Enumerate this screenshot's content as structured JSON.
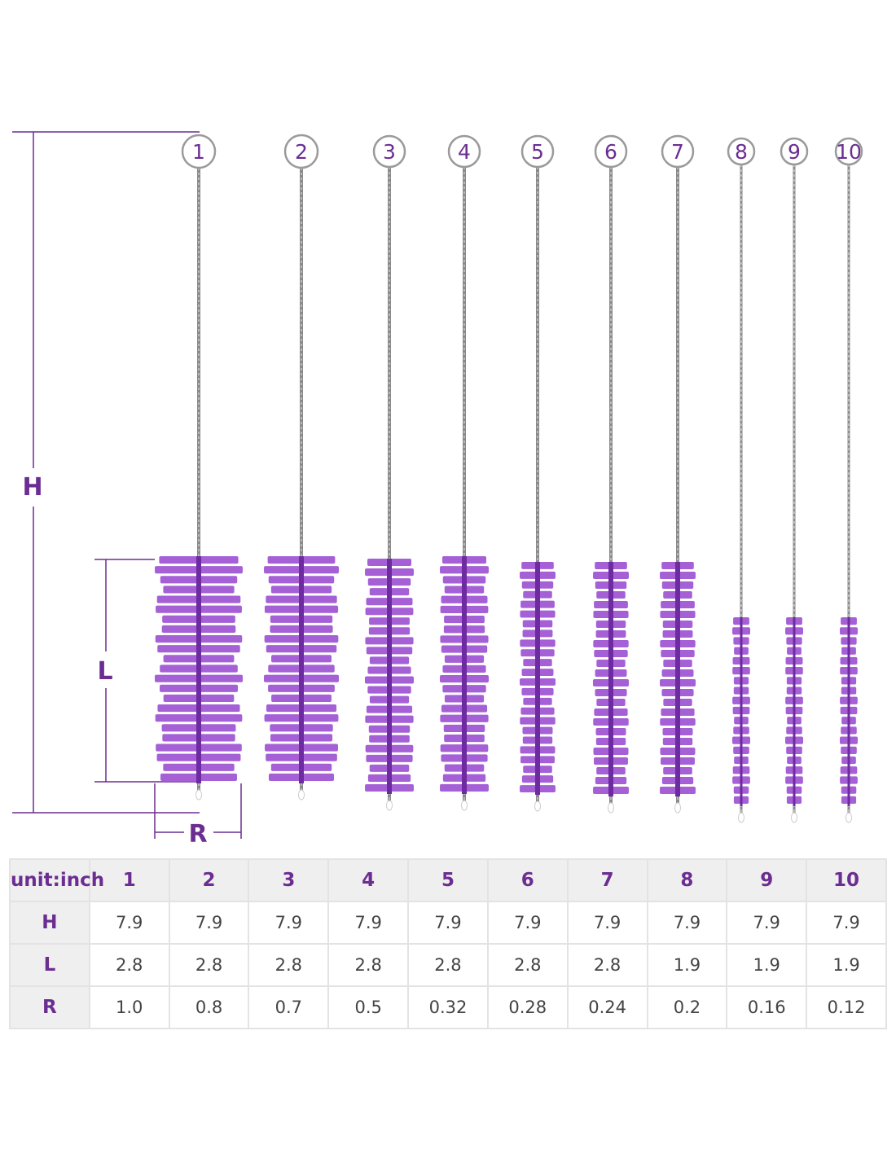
{
  "colors": {
    "accent": "#6b2d91",
    "bristle": "#9b4fd1",
    "bristle_dark": "#6e2aa0",
    "wire": "#8a8a8a",
    "table_header_bg": "#efefef",
    "grid": "#e3e3e3"
  },
  "dimension_labels": {
    "height": "H",
    "length": "L",
    "radius": "R"
  },
  "brush_numbers": [
    "1",
    "2",
    "3",
    "4",
    "5",
    "6",
    "7",
    "8",
    "9",
    "10"
  ],
  "table": {
    "corner": "unit:inch",
    "columns": [
      "1",
      "2",
      "3",
      "4",
      "5",
      "6",
      "7",
      "8",
      "9",
      "10"
    ],
    "rows": [
      {
        "label": "H",
        "values": [
          "7.9",
          "7.9",
          "7.9",
          "7.9",
          "7.9",
          "7.9",
          "7.9",
          "7.9",
          "7.9",
          "7.9"
        ]
      },
      {
        "label": "L",
        "values": [
          "2.8",
          "2.8",
          "2.8",
          "2.8",
          "2.8",
          "2.8",
          "2.8",
          "1.9",
          "1.9",
          "1.9"
        ]
      },
      {
        "label": "R",
        "values": [
          "1.0",
          "0.8",
          "0.7",
          "0.5",
          "0.32",
          "0.28",
          "0.24",
          "0.2",
          "0.16",
          "0.12"
        ]
      }
    ]
  }
}
